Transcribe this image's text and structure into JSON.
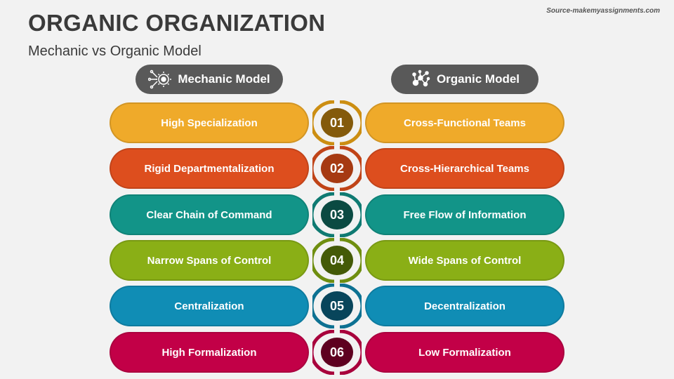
{
  "title": "ORGANIC ORGANIZATION",
  "subtitle": "Mechanic vs Organic Model",
  "source": "Source-makemyassignments.com",
  "headers": {
    "left": "Mechanic Model",
    "right": "Organic Model",
    "left_icon": "gear-circuit-icon",
    "right_icon": "network-icon"
  },
  "rows": [
    {
      "num": "01",
      "left": "High Specialization",
      "right": "Cross-Functional Teams",
      "color": "#EFAA2A",
      "ring": "#CC8E12",
      "dark": "#845A0B"
    },
    {
      "num": "02",
      "left": "Rigid Departmentalization",
      "right": "Cross-Hierarchical Teams",
      "color": "#DD4E1E",
      "ring": "#C04418",
      "dark": "#A63A12"
    },
    {
      "num": "03",
      "left": "Clear Chain of Command",
      "right": "Free Flow of Information",
      "color": "#129488",
      "ring": "#0F7A72",
      "dark": "#0B4A42"
    },
    {
      "num": "04",
      "left": "Narrow Spans of Control",
      "right": "Wide Spans of Control",
      "color": "#8AAF16",
      "ring": "#6F8E10",
      "dark": "#445A07"
    },
    {
      "num": "05",
      "left": "Centralization",
      "right": "Decentralization",
      "color": "#108DB5",
      "ring": "#0D7192",
      "dark": "#08455B"
    },
    {
      "num": "06",
      "left": "High Formalization",
      "right": "Low Formalization",
      "color": "#C20047",
      "ring": "#A8003C",
      "dark": "#5E0020"
    }
  ]
}
